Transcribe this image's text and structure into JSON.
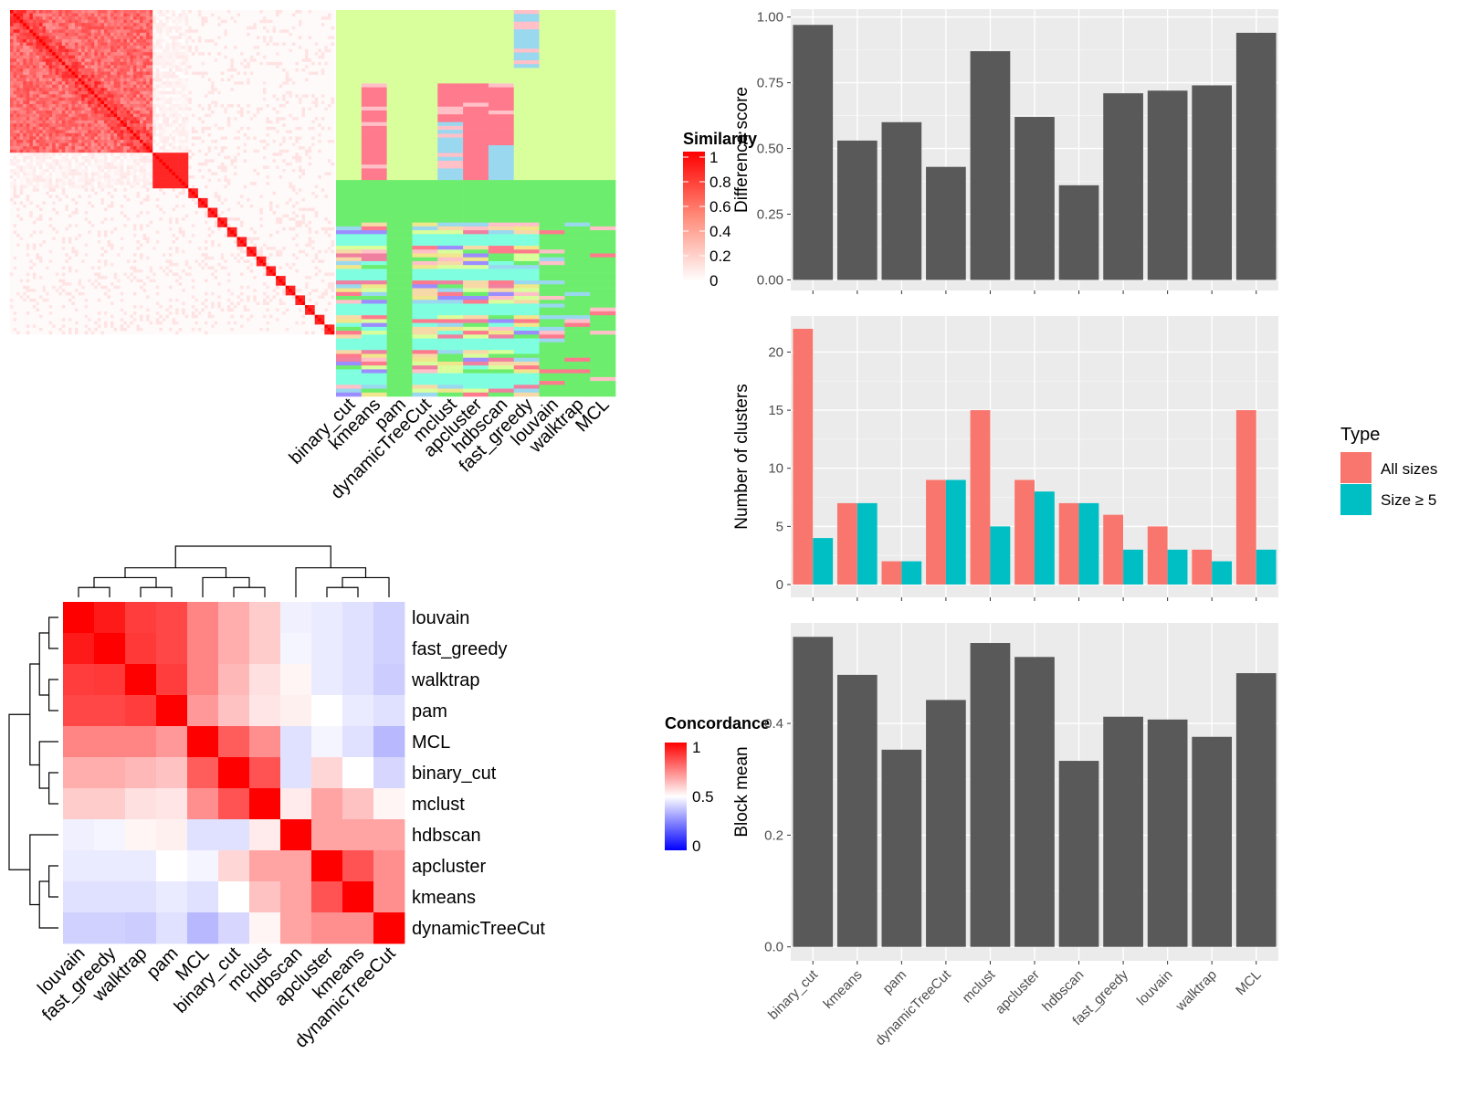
{
  "chart_data": [
    {
      "type": "heatmap",
      "legend_title": "Similarity",
      "legend_ticks": [
        "1",
        "0.8",
        "0.6",
        "0.4",
        "0.2",
        "0"
      ],
      "legend_colors": [
        "#ffffff",
        "#ff0000"
      ],
      "methods": [
        "binary_cut",
        "kmeans",
        "pam",
        "dynamicTreeCut",
        "mclust",
        "apcluster",
        "hdbscan",
        "fast_greedy",
        "louvain",
        "walktrap",
        "MCL"
      ],
      "blocks": [
        [
          0,
          44
        ],
        [
          44,
          55
        ],
        [
          55,
          58
        ],
        [
          58,
          61
        ],
        [
          61,
          64
        ],
        [
          64,
          67
        ],
        [
          67,
          70
        ],
        [
          70,
          73
        ],
        [
          73,
          76
        ],
        [
          76,
          79
        ],
        [
          79,
          82
        ],
        [
          82,
          85
        ],
        [
          85,
          88
        ],
        [
          88,
          91
        ],
        [
          91,
          94
        ],
        [
          94,
          97
        ],
        [
          97,
          100
        ]
      ],
      "palette": [
        "#d9ff9c",
        "#6ded6d",
        "#ff7a8c",
        "#99d8ef",
        "#ffc0c8",
        "#f7d9a8",
        "#80ffe0",
        "#f0e68c",
        "#9b8cff",
        "#f080a0"
      ]
    },
    {
      "type": "heatmap",
      "legend_title": "Concordance",
      "legend_ticks": [
        "1",
        "0.5",
        "0"
      ],
      "legend_colors": [
        "#0000ff",
        "#ffffff",
        "#ff0000"
      ],
      "rows": [
        "louvain",
        "fast_greedy",
        "walktrap",
        "pam",
        "MCL",
        "binary_cut",
        "mclust",
        "hdbscan",
        "apcluster",
        "kmeans",
        "dynamicTreeCut"
      ],
      "cols": [
        "louvain",
        "fast_greedy",
        "walktrap",
        "pam",
        "MCL",
        "binary_cut",
        "mclust",
        "hdbscan",
        "apcluster",
        "kmeans",
        "dynamicTreeCut"
      ],
      "values": [
        [
          1.0,
          0.95,
          0.88,
          0.86,
          0.74,
          0.66,
          0.6,
          0.47,
          0.46,
          0.44,
          0.41
        ],
        [
          0.95,
          1.0,
          0.89,
          0.86,
          0.74,
          0.66,
          0.6,
          0.48,
          0.46,
          0.44,
          0.41
        ],
        [
          0.88,
          0.89,
          1.0,
          0.88,
          0.74,
          0.64,
          0.56,
          0.52,
          0.46,
          0.44,
          0.4
        ],
        [
          0.86,
          0.86,
          0.88,
          1.0,
          0.7,
          0.62,
          0.55,
          0.53,
          0.5,
          0.46,
          0.44
        ],
        [
          0.74,
          0.74,
          0.74,
          0.7,
          1.0,
          0.82,
          0.72,
          0.44,
          0.48,
          0.44,
          0.36
        ],
        [
          0.66,
          0.66,
          0.64,
          0.62,
          0.82,
          1.0,
          0.84,
          0.44,
          0.58,
          0.5,
          0.42
        ],
        [
          0.6,
          0.6,
          0.56,
          0.55,
          0.72,
          0.84,
          1.0,
          0.54,
          0.68,
          0.62,
          0.52
        ],
        [
          0.47,
          0.48,
          0.52,
          0.53,
          0.44,
          0.44,
          0.54,
          1.0,
          0.68,
          0.68,
          0.68
        ],
        [
          0.46,
          0.46,
          0.46,
          0.5,
          0.48,
          0.58,
          0.68,
          0.68,
          1.0,
          0.84,
          0.72
        ],
        [
          0.44,
          0.44,
          0.44,
          0.46,
          0.44,
          0.5,
          0.62,
          0.68,
          0.84,
          1.0,
          0.72
        ],
        [
          0.41,
          0.41,
          0.4,
          0.44,
          0.36,
          0.42,
          0.52,
          0.68,
          0.72,
          0.72,
          1.0
        ]
      ]
    },
    {
      "type": "bar",
      "categories": [
        "binary_cut",
        "kmeans",
        "pam",
        "dynamicTreeCut",
        "mclust",
        "apcluster",
        "hdbscan",
        "fast_greedy",
        "louvain",
        "walktrap",
        "MCL"
      ],
      "values": [
        0.97,
        0.53,
        0.6,
        0.43,
        0.87,
        0.62,
        0.36,
        0.71,
        0.72,
        0.74,
        0.94
      ],
      "ylabel": "Difference score",
      "ylim": [
        -0.04,
        1.03
      ],
      "yticks": [
        0,
        0.25,
        0.5,
        0.75,
        1
      ],
      "ytick_labels": [
        "0.00",
        "0.25",
        "0.50",
        "0.75",
        "1.00"
      ],
      "bar_color": "#595959"
    },
    {
      "type": "bar",
      "categories": [
        "binary_cut",
        "kmeans",
        "pam",
        "dynamicTreeCut",
        "mclust",
        "apcluster",
        "hdbscan",
        "fast_greedy",
        "louvain",
        "walktrap",
        "MCL"
      ],
      "series": [
        {
          "name": "All sizes",
          "values": [
            22,
            7,
            2,
            9,
            15,
            9,
            7,
            6,
            5,
            3,
            15
          ],
          "color": "#f8766d"
        },
        {
          "name": "Size ≥ 5",
          "values": [
            4,
            7,
            2,
            9,
            5,
            8,
            7,
            3,
            3,
            2,
            3
          ],
          "color": "#00bfc4"
        }
      ],
      "ylabel": "Number of clusters",
      "ylim": [
        -1.1,
        23.1
      ],
      "yticks": [
        0,
        5,
        10,
        15,
        20
      ],
      "ytick_labels": [
        "0",
        "5",
        "10",
        "15",
        "20"
      ],
      "legend_title": "Type",
      "legend_position": "right"
    },
    {
      "type": "bar",
      "categories": [
        "binary_cut",
        "kmeans",
        "pam",
        "dynamicTreeCut",
        "mclust",
        "apcluster",
        "hdbscan",
        "fast_greedy",
        "louvain",
        "walktrap",
        "MCL"
      ],
      "values": [
        0.555,
        0.487,
        0.353,
        0.442,
        0.544,
        0.519,
        0.333,
        0.412,
        0.407,
        0.376,
        0.49
      ],
      "ylabel": "Block mean",
      "ylim": [
        -0.025,
        0.58
      ],
      "yticks": [
        0,
        0.2,
        0.4
      ],
      "ytick_labels": [
        "0.0",
        "0.2",
        "0.4"
      ],
      "bar_color": "#595959"
    }
  ]
}
